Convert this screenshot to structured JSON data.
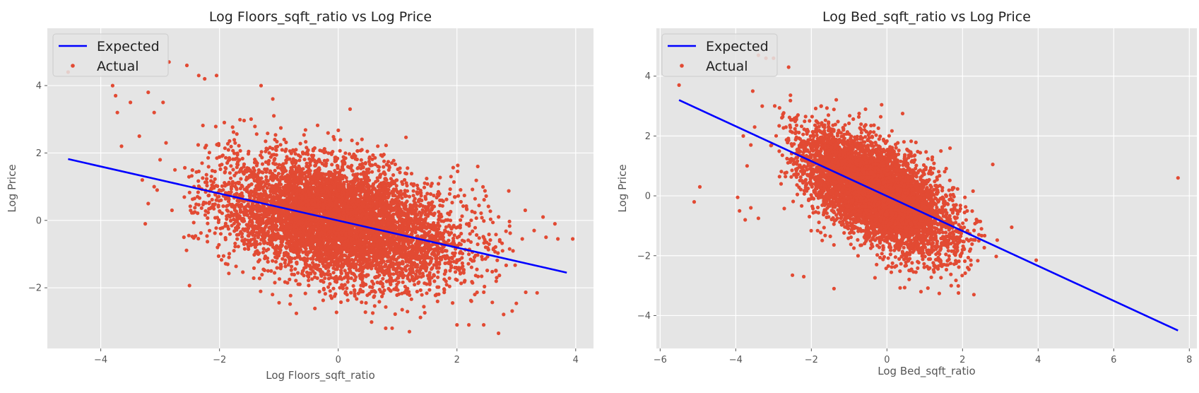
{
  "chart_data": [
    {
      "type": "scatter",
      "title": "Log Floors_sqft_ratio vs Log Price",
      "xlabel": "Log Floors_sqft_ratio",
      "ylabel": "Log Price",
      "xlim": [
        -4.9,
        4.3
      ],
      "ylim": [
        -3.8,
        5.7
      ],
      "xticks": [
        -4,
        -2,
        0,
        2,
        4
      ],
      "yticks": [
        -2,
        0,
        2,
        4
      ],
      "xtick_labels": [
        "−4",
        "−2",
        "0",
        "2",
        "4"
      ],
      "ytick_labels": [
        "−2",
        "0",
        "2",
        "4"
      ],
      "grid": true,
      "legend_position": "top-left",
      "series": [
        {
          "name": "Expected",
          "kind": "line",
          "color": "#0000ff",
          "x": [
            -4.55,
            3.85
          ],
          "y": [
            1.82,
            -1.55
          ]
        },
        {
          "name": "Actual",
          "kind": "scatter",
          "color": "#e24a33",
          "cloud": {
            "center": [
              0.0,
              0.0
            ],
            "sd": [
              1.0,
              0.9
            ],
            "corr": -0.35,
            "xrange": [
              -2.6,
              3.2
            ],
            "yrange": [
              -3.3,
              3.9
            ]
          },
          "points": [
            [
              -4.55,
              4.4
            ],
            [
              -3.8,
              4.0
            ],
            [
              -3.75,
              3.7
            ],
            [
              -3.72,
              3.2
            ],
            [
              -3.5,
              3.5
            ],
            [
              -3.65,
              2.2
            ],
            [
              -3.35,
              2.5
            ],
            [
              -3.2,
              3.8
            ],
            [
              -3.1,
              3.2
            ],
            [
              -2.95,
              3.5
            ],
            [
              -2.85,
              4.7
            ],
            [
              -2.55,
              4.6
            ],
            [
              -2.35,
              4.3
            ],
            [
              -2.25,
              4.2
            ],
            [
              -2.05,
              4.3
            ],
            [
              -3.3,
              1.2
            ],
            [
              -3.1,
              1.0
            ],
            [
              -3.2,
              0.5
            ],
            [
              -3.25,
              -0.1
            ],
            [
              -3.0,
              1.8
            ],
            [
              -2.8,
              0.3
            ],
            [
              -2.75,
              1.5
            ],
            [
              -2.6,
              -0.5
            ],
            [
              -3.05,
              0.9
            ],
            [
              -2.9,
              2.3
            ],
            [
              0.2,
              3.3
            ],
            [
              -1.3,
              4.0
            ],
            [
              0.8,
              -3.2
            ],
            [
              1.2,
              -3.3
            ],
            [
              2.0,
              -3.1
            ],
            [
              2.2,
              -3.1
            ],
            [
              2.45,
              -3.1
            ],
            [
              2.7,
              -3.35
            ],
            [
              3.35,
              -2.15
            ],
            [
              3.1,
              -0.55
            ],
            [
              3.15,
              0.3
            ],
            [
              3.3,
              -0.3
            ],
            [
              3.45,
              0.1
            ],
            [
              3.5,
              -0.5
            ],
            [
              3.65,
              -0.1
            ],
            [
              3.7,
              -0.55
            ],
            [
              3.95,
              -0.55
            ],
            [
              2.35,
              1.6
            ],
            [
              2.3,
              -2.2
            ],
            [
              1.9,
              1.3
            ]
          ]
        }
      ]
    },
    {
      "type": "scatter",
      "title": "Log Bed_sqft_ratio vs Log Price",
      "xlabel": "Log Bed_sqft_ratio",
      "ylabel": "Log Price",
      "xlim": [
        -6.1,
        8.2
      ],
      "ylim": [
        -5.1,
        5.6
      ],
      "xticks": [
        -6,
        -4,
        -2,
        0,
        2,
        4,
        6,
        8
      ],
      "yticks": [
        -4,
        -2,
        0,
        2,
        4
      ],
      "xtick_labels": [
        "−6",
        "−4",
        "−2",
        "0",
        "2",
        "4",
        "6",
        "8"
      ],
      "ytick_labels": [
        "−4",
        "−2",
        "0",
        "2",
        "4"
      ],
      "grid": true,
      "legend_position": "top-left",
      "series": [
        {
          "name": "Expected",
          "kind": "line",
          "color": "#0000ff",
          "x": [
            -5.5,
            7.7
          ],
          "y": [
            3.2,
            -4.5
          ]
        },
        {
          "name": "Actual",
          "kind": "scatter",
          "color": "#e24a33",
          "cloud": {
            "center": [
              -0.3,
              0.1
            ],
            "sd": [
              0.95,
              0.95
            ],
            "corr": -0.6,
            "xrange": [
              -3.2,
              3.4
            ],
            "yrange": [
              -3.3,
              4.3
            ]
          },
          "points": [
            [
              -5.5,
              3.7
            ],
            [
              -5.1,
              -0.2
            ],
            [
              -4.95,
              0.3
            ],
            [
              -3.95,
              -0.05
            ],
            [
              -3.9,
              -0.5
            ],
            [
              -3.75,
              -0.8
            ],
            [
              -3.6,
              -0.4
            ],
            [
              -3.4,
              -0.75
            ],
            [
              -3.8,
              2.0
            ],
            [
              -3.6,
              1.7
            ],
            [
              -3.7,
              1.0
            ],
            [
              -3.5,
              2.3
            ],
            [
              -3.3,
              3.0
            ],
            [
              -3.2,
              4.6
            ],
            [
              -3.4,
              4.7
            ],
            [
              -3.0,
              4.6
            ],
            [
              -2.6,
              4.3
            ],
            [
              -3.55,
              3.5
            ],
            [
              -2.8,
              0.4
            ],
            [
              -2.5,
              -2.65
            ],
            [
              -2.2,
              -2.7
            ],
            [
              -1.4,
              -3.1
            ],
            [
              0.9,
              -3.2
            ],
            [
              1.7,
              -3.0
            ],
            [
              2.3,
              -3.3
            ],
            [
              2.5,
              -1.1
            ],
            [
              2.8,
              1.05
            ],
            [
              3.3,
              -1.05
            ],
            [
              3.95,
              -2.15
            ],
            [
              7.7,
              0.6
            ]
          ]
        }
      ]
    }
  ]
}
